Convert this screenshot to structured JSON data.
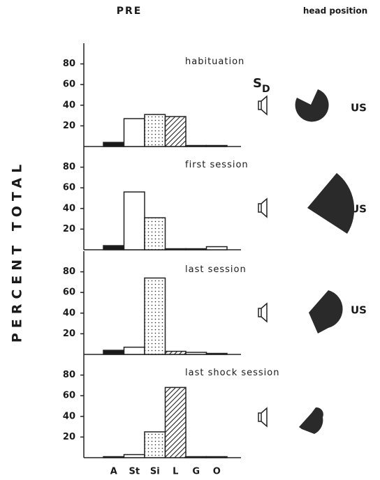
{
  "title": "PRE",
  "head_label": "head position",
  "ylabel": "PERCENT TOTAL",
  "stimulus": {
    "symbol": "S",
    "subscript": "D"
  },
  "us_labels": [
    "US",
    "US",
    "US"
  ],
  "chart_data": [
    {
      "type": "bar",
      "title": "habituation",
      "values": [
        4,
        27,
        31,
        29,
        1,
        1
      ],
      "patterns": [
        "solid",
        "open",
        "dotted",
        "hatched",
        "open",
        "open"
      ],
      "ylim": [
        0,
        100
      ],
      "yticks": [
        20,
        40,
        60,
        80
      ]
    },
    {
      "type": "bar",
      "title": "first session",
      "values": [
        4,
        56,
        31,
        1,
        1,
        3
      ],
      "patterns": [
        "solid",
        "open",
        "dotted",
        "hatched",
        "open",
        "open"
      ],
      "ylim": [
        0,
        100
      ],
      "yticks": [
        20,
        40,
        60,
        80
      ]
    },
    {
      "type": "bar",
      "title": "last session",
      "values": [
        4,
        7,
        74,
        3,
        2,
        1
      ],
      "patterns": [
        "solid",
        "open",
        "dotted",
        "hatched",
        "open",
        "open"
      ],
      "ylim": [
        0,
        100
      ],
      "yticks": [
        20,
        40,
        60,
        80
      ]
    },
    {
      "type": "bar",
      "title": "last shock session",
      "categories": [
        "A",
        "St",
        "Si",
        "L",
        "G",
        "O"
      ],
      "values": [
        1,
        3,
        25,
        68,
        1,
        1
      ],
      "patterns": [
        "solid",
        "open",
        "dotted",
        "hatched",
        "open",
        "open"
      ],
      "ylim": [
        0,
        100
      ],
      "yticks": [
        20,
        40,
        60,
        80
      ]
    }
  ]
}
